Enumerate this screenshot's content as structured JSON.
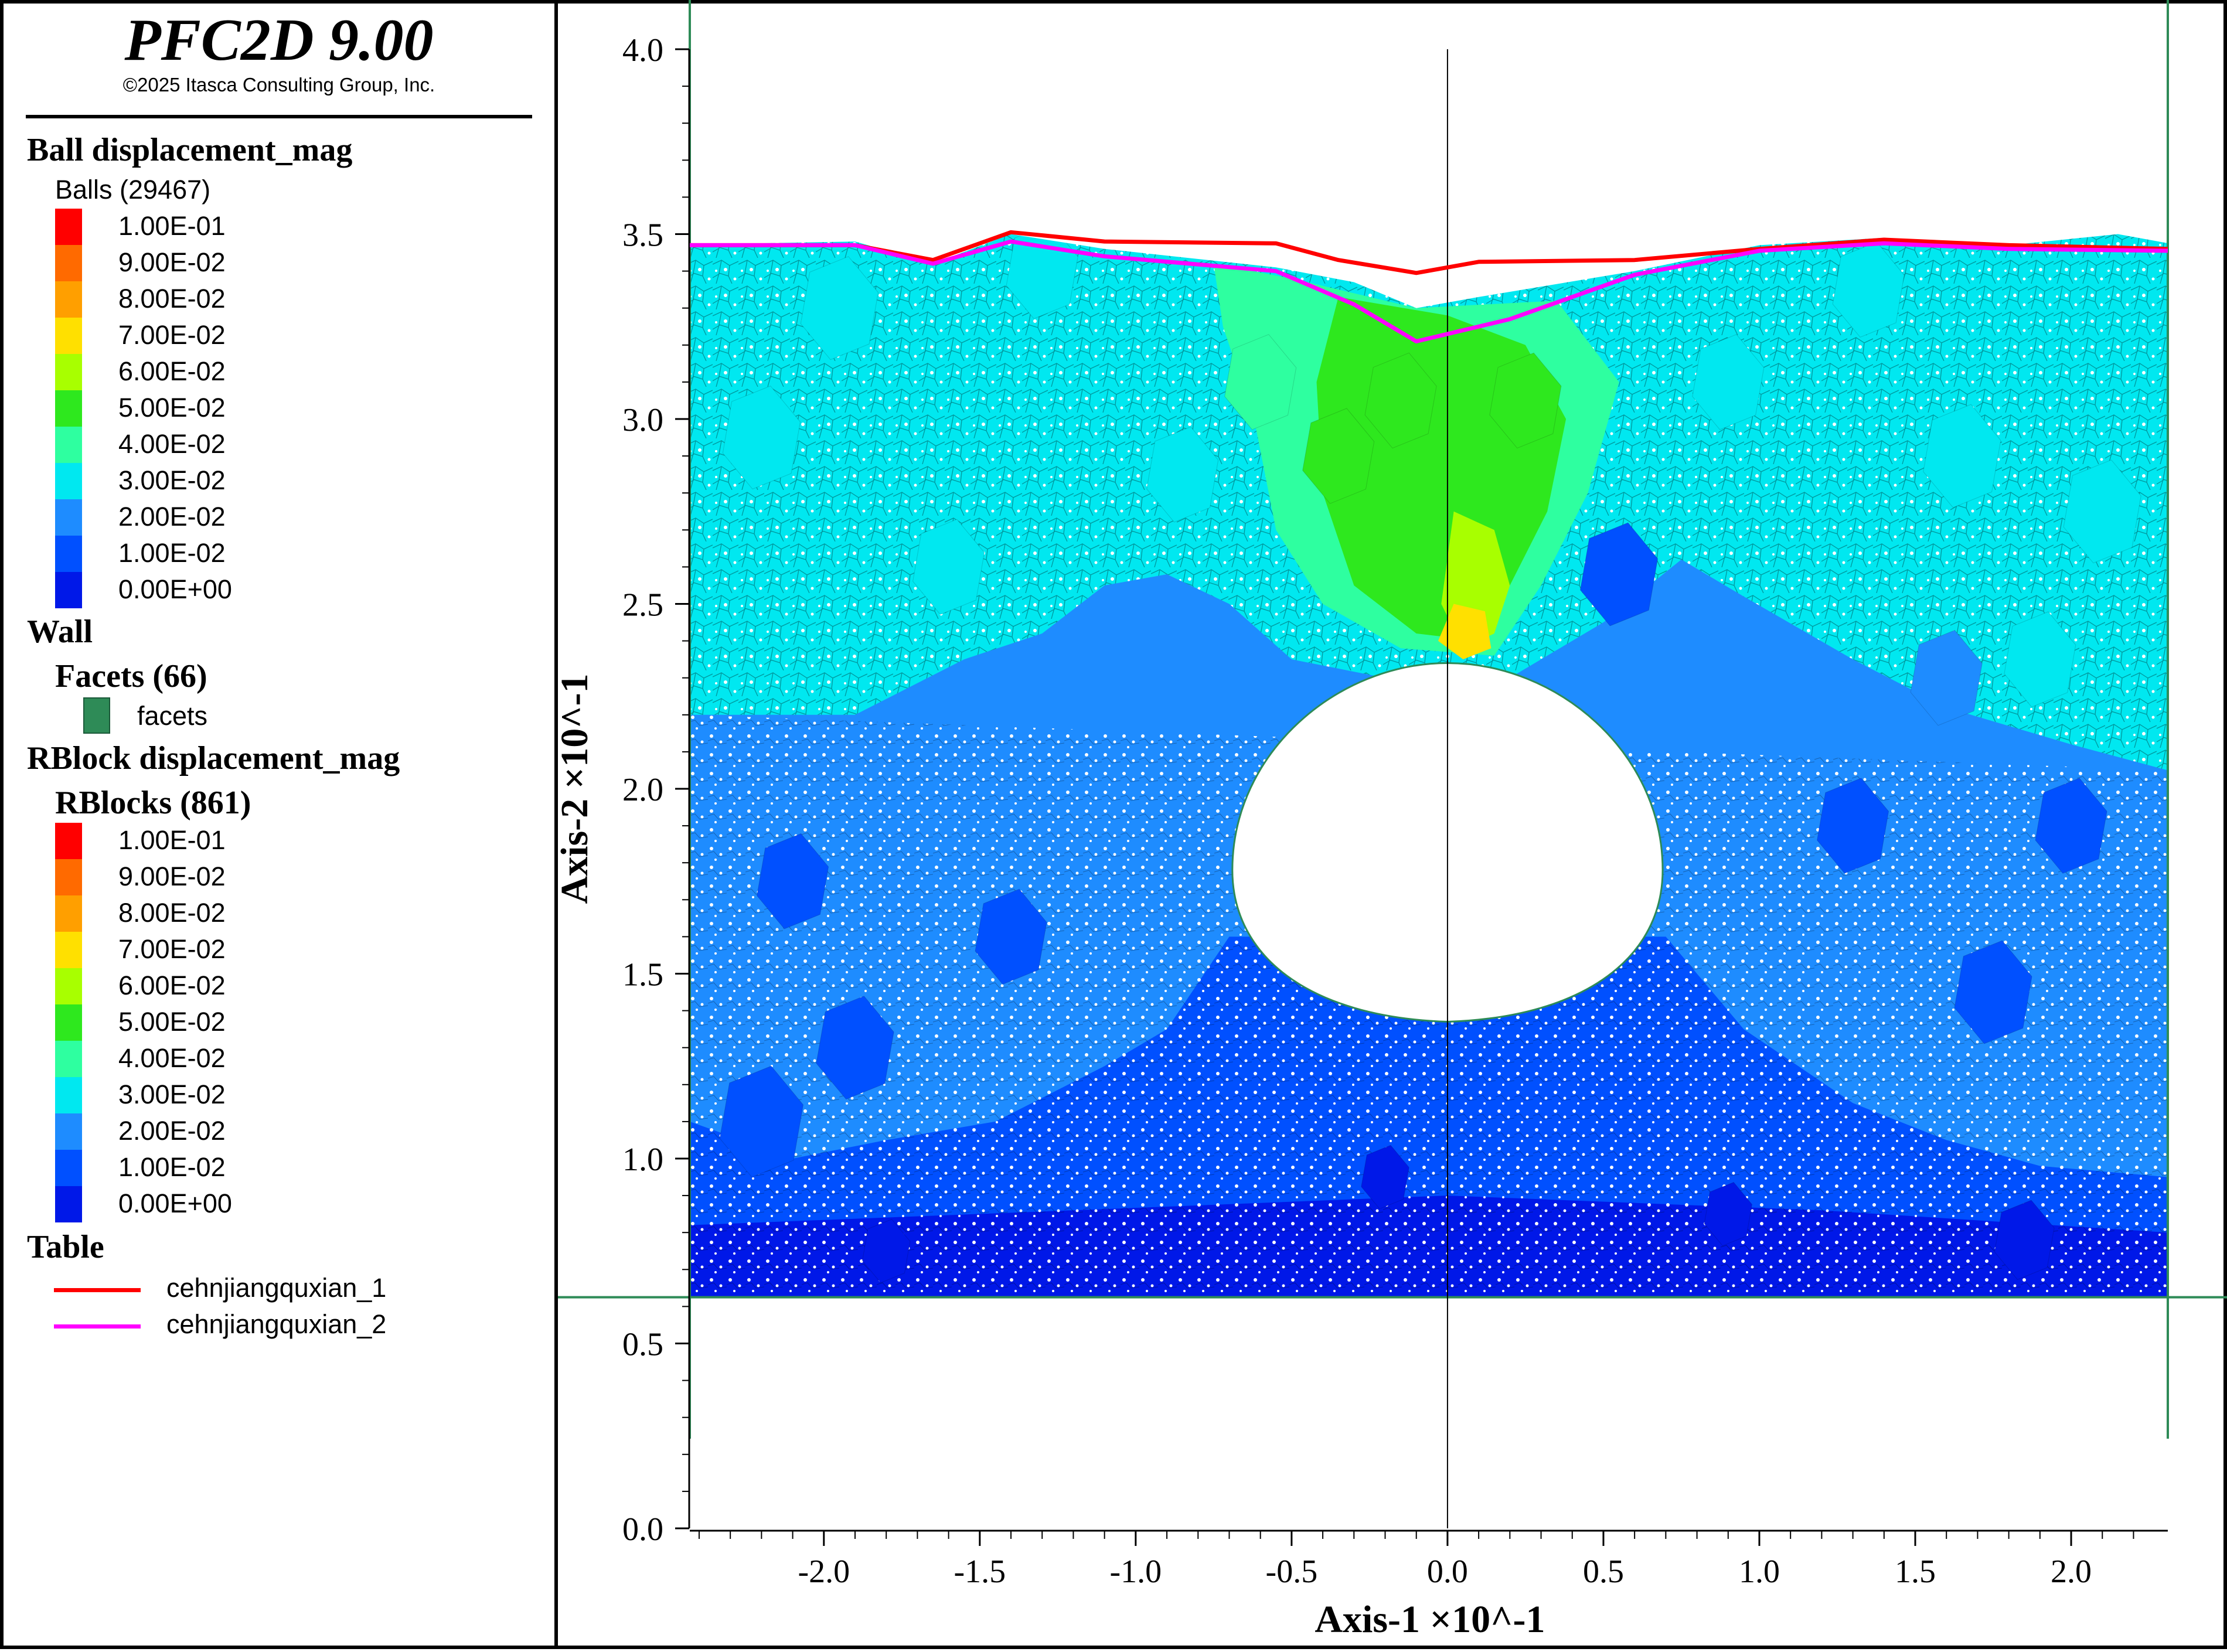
{
  "app": {
    "title": "PFC2D 9.00",
    "copyright": "©2025 Itasca Consulting Group, Inc."
  },
  "legend": {
    "ball_header": "Ball displacement_mag",
    "balls_label": "Balls (29467)",
    "ball_scale": [
      {
        "label": "1.00E-01",
        "color": "#ff0000"
      },
      {
        "label": "9.00E-02",
        "color": "#ff6a00"
      },
      {
        "label": "8.00E-02",
        "color": "#ff9f00"
      },
      {
        "label": "7.00E-02",
        "color": "#ffe000"
      },
      {
        "label": "6.00E-02",
        "color": "#a8ff00"
      },
      {
        "label": "5.00E-02",
        "color": "#2ee81e"
      },
      {
        "label": "4.00E-02",
        "color": "#2effa0"
      },
      {
        "label": "3.00E-02",
        "color": "#00e8f0"
      },
      {
        "label": "2.00E-02",
        "color": "#1e8cff"
      },
      {
        "label": "1.00E-02",
        "color": "#0050ff"
      },
      {
        "label": "0.00E+00",
        "color": "#0018e8"
      }
    ],
    "wall_header": "Wall",
    "facets_label": "Facets (66)",
    "facets_item": "facets",
    "facet_color": "#2e8b57",
    "rblock_header": "RBlock displacement_mag",
    "rblocks_label": "RBlocks (861)",
    "rblock_scale": [
      {
        "label": "1.00E-01",
        "color": "#ff0000"
      },
      {
        "label": "9.00E-02",
        "color": "#ff6a00"
      },
      {
        "label": "8.00E-02",
        "color": "#ff9f00"
      },
      {
        "label": "7.00E-02",
        "color": "#ffe000"
      },
      {
        "label": "6.00E-02",
        "color": "#a8ff00"
      },
      {
        "label": "5.00E-02",
        "color": "#2ee81e"
      },
      {
        "label": "4.00E-02",
        "color": "#2effa0"
      },
      {
        "label": "3.00E-02",
        "color": "#00e8f0"
      },
      {
        "label": "2.00E-02",
        "color": "#1e8cff"
      },
      {
        "label": "1.00E-02",
        "color": "#0050ff"
      },
      {
        "label": "0.00E+00",
        "color": "#0018e8"
      }
    ],
    "table_header": "Table",
    "table_items": [
      {
        "label": "cehnjiangquxian_1",
        "color": "#ff0000"
      },
      {
        "label": "cehnjiangquxian_2",
        "color": "#ff00ff"
      }
    ]
  },
  "chart_data": {
    "type": "contour",
    "xlabel": "Axis-1 ×10^-1",
    "ylabel": "Axis-2 ×10^-1",
    "xlim": [
      -2.43,
      2.31
    ],
    "ylim": [
      0,
      4.0
    ],
    "x_ticks": [
      "-2.0",
      "-1.5",
      "-1.0",
      "-0.5",
      "0.0",
      "0.5",
      "1.0",
      "1.5",
      "2.0"
    ],
    "y_ticks": [
      "0.0",
      "0.5",
      "1.0",
      "1.5",
      "2.0",
      "2.5",
      "3.0",
      "3.5",
      "4.0"
    ],
    "x_tick_values": [
      -2.0,
      -1.5,
      -1.0,
      -0.5,
      0.0,
      0.5,
      1.0,
      1.5,
      2.0
    ],
    "y_tick_values": [
      0,
      0.5,
      1.0,
      1.5,
      2.0,
      2.5,
      3.0,
      3.5,
      4.0
    ],
    "model_bottom": 0.625,
    "tunnel": {
      "center_x": 0.0,
      "crown_y": 2.34,
      "invert_y": 1.37,
      "half_width": 0.69
    },
    "series": [
      {
        "name": "cehnjiangquxian_1",
        "color": "#ff0000",
        "x": [
          -2.43,
          -1.9,
          -1.65,
          -1.4,
          -1.1,
          -0.55,
          -0.35,
          -0.1,
          0.1,
          0.6,
          1.0,
          1.4,
          1.8,
          2.31
        ],
        "y": [
          3.47,
          3.47,
          3.43,
          3.505,
          3.48,
          3.475,
          3.43,
          3.395,
          3.425,
          3.43,
          3.46,
          3.485,
          3.47,
          3.46
        ]
      },
      {
        "name": "cehnjiangquxian_2",
        "color": "#ff00ff",
        "x": [
          -2.43,
          -1.9,
          -1.65,
          -1.4,
          -1.1,
          -0.55,
          -0.3,
          -0.1,
          0.2,
          0.6,
          1.0,
          1.4,
          1.8,
          2.31
        ],
        "y": [
          3.47,
          3.47,
          3.42,
          3.48,
          3.44,
          3.4,
          3.31,
          3.21,
          3.27,
          3.39,
          3.455,
          3.475,
          3.46,
          3.455
        ]
      }
    ]
  }
}
